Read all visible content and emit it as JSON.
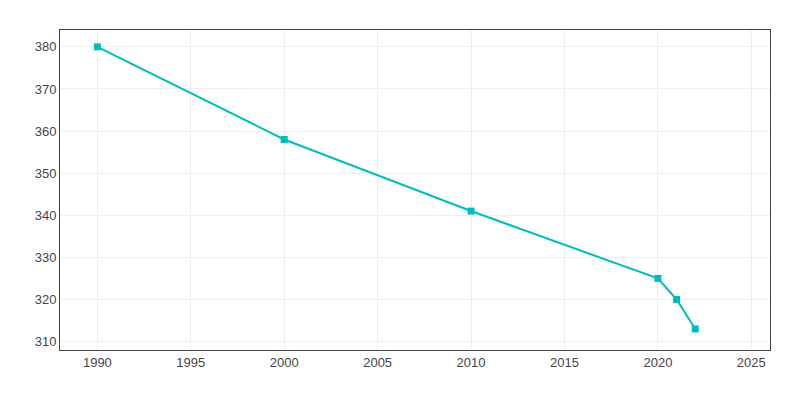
{
  "chart_data": {
    "type": "line",
    "x": [
      1990,
      2000,
      2010,
      2020,
      2021,
      2022
    ],
    "values": [
      380,
      358,
      341,
      325,
      320,
      313
    ],
    "color": "#00BEBE",
    "marker": "square",
    "xlim": [
      1988,
      2026
    ],
    "ylim": [
      308,
      384
    ],
    "xticks": [
      1990,
      1995,
      2000,
      2005,
      2010,
      2015,
      2020,
      2025
    ],
    "yticks": [
      310,
      320,
      330,
      340,
      350,
      360,
      370,
      380
    ],
    "grid": true
  }
}
